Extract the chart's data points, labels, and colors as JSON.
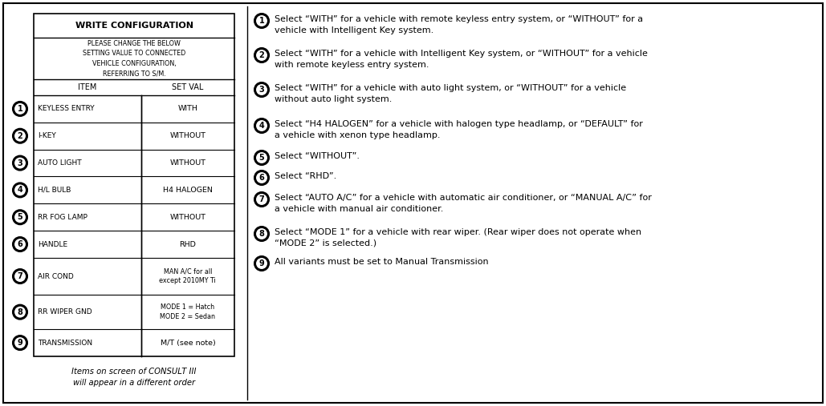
{
  "bg_color": "#ffffff",
  "border_color": "#000000",
  "table_title": "WRITE CONFIGURATION",
  "table_subtitle": "PLEASE CHANGE THE BELOW\nSETTING VALUE TO CONNECTED\nVEHICLE CONFIGURATION,\nREFERRING TO S/M.",
  "col_headers": [
    "ITEM",
    "SET VAL"
  ],
  "rows": [
    [
      "KEYLESS ENTRY",
      "WITH"
    ],
    [
      "I-KEY",
      "WITHOUT"
    ],
    [
      "AUTO LIGHT",
      "WITHOUT"
    ],
    [
      "H/L BULB",
      "H4 HALOGEN"
    ],
    [
      "RR FOG LAMP",
      "WITHOUT"
    ],
    [
      "HANDLE",
      "RHD"
    ],
    [
      "AIR COND",
      "MAN A/C for all\nexcept 2010MY Ti"
    ],
    [
      "RR WIPER GND",
      "MODE 1 = Hatch\nMODE 2 = Sedan"
    ],
    [
      "TRANSMISSION",
      "M/T (see note)"
    ]
  ],
  "footnote": "Items on screen of CONSULT III\nwill appear in a different order",
  "right_items": [
    {
      "num": 1,
      "text": "Select “WITH” for a vehicle with remote keyless entry system, or “WITHOUT” for a\nvehicle with Intelligent Key system."
    },
    {
      "num": 2,
      "text": "Select “WITH” for a vehicle with Intelligent Key system, or “WITHOUT” for a vehicle\nwith remote keyless entry system."
    },
    {
      "num": 3,
      "text": "Select “WITH” for a vehicle with auto light system, or “WITHOUT” for a vehicle\nwithout auto light system."
    },
    {
      "num": 4,
      "text": "Select “H4 HALOGEN” for a vehicle with halogen type headlamp, or “DEFAULT” for\na vehicle with xenon type headlamp."
    },
    {
      "num": 5,
      "text": "Select “WITHOUT”."
    },
    {
      "num": 6,
      "text": "Select “RHD”."
    },
    {
      "num": 7,
      "text": "Select “AUTO A/C” for a vehicle with automatic air conditioner, or “MANUAL A/C” for\na vehicle with manual air conditioner."
    },
    {
      "num": 8,
      "text": "Select “MODE 1” for a vehicle with rear wiper. (Rear wiper does not operate when\n“MODE 2” is selected.)"
    },
    {
      "num": 9,
      "text": "All variants must be set to Manual Transmission"
    }
  ]
}
